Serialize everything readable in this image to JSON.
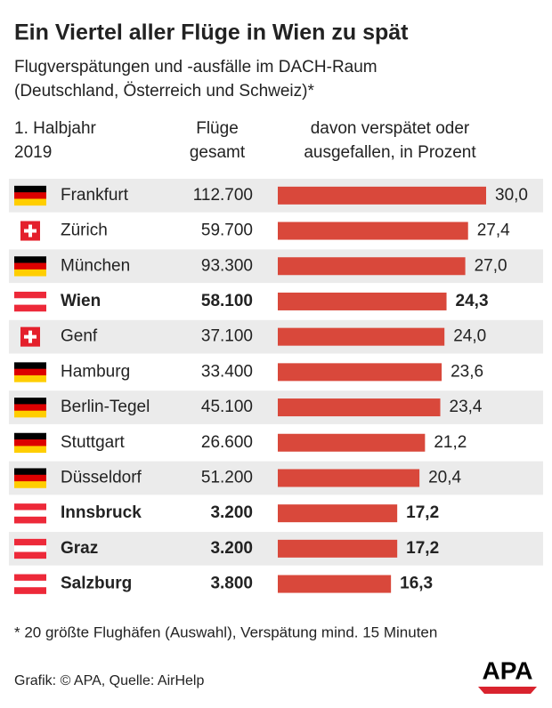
{
  "chart_data": {
    "type": "bar",
    "title": "Ein Viertel aller Flüge in Wien zu spät",
    "subtitle": [
      "Flugverspätungen und -ausfälle im DACH-Raum",
      "(Deutschland, Österreich und Schweiz)*"
    ],
    "column_headers": [
      [
        "1. Halbjahr",
        "2019"
      ],
      [
        "Flüge",
        "gesamt"
      ],
      [
        "davon verspätet oder",
        "ausgefallen, in Prozent"
      ]
    ],
    "categories": [
      "Frankfurt",
      "Zürich",
      "München",
      "Wien",
      "Genf",
      "Hamburg",
      "Berlin-Tegel",
      "Stuttgart",
      "Düsseldorf",
      "Innsbruck",
      "Graz",
      "Salzburg"
    ],
    "flights": [
      "112.700",
      "59.700",
      "93.300",
      "58.100",
      "37.100",
      "33.400",
      "45.100",
      "26.600",
      "51.200",
      "3.200",
      "3.200",
      "3.800"
    ],
    "flags": [
      "de",
      "ch",
      "de",
      "at",
      "ch",
      "de",
      "de",
      "de",
      "de",
      "at",
      "at",
      "at"
    ],
    "values": [
      30.0,
      27.4,
      27.0,
      24.3,
      24.0,
      23.6,
      23.4,
      21.2,
      20.4,
      17.2,
      17.2,
      16.3
    ],
    "value_labels": [
      "30,0",
      "27,4",
      "27,0",
      "24,3",
      "24,0",
      "23,6",
      "23,4",
      "21,2",
      "20,4",
      "17,2",
      "17,2",
      "16,3"
    ],
    "color": "#d9483b",
    "xlim": [
      0,
      30
    ],
    "footnote": "* 20 größte Flughäfen (Auswahl), Verspätung mind. 15 Minuten",
    "source": "Grafik: © APA, Quelle: AirHelp",
    "logo": "APA"
  }
}
